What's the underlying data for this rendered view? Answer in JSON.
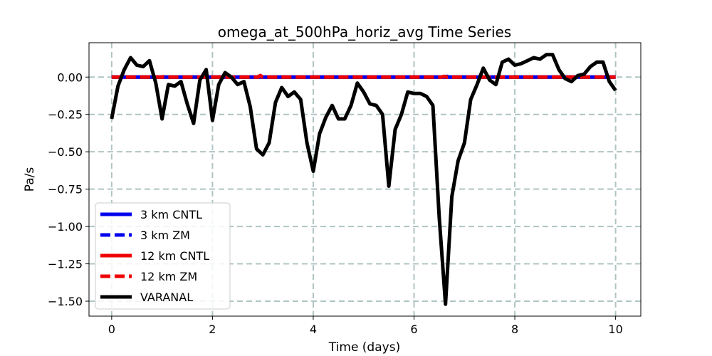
{
  "chart_data": {
    "type": "line",
    "title": "omega_at_500hPa_horiz_avg Time Series",
    "xlabel": "Time (days)",
    "ylabel": "Pa/s",
    "xlim": [
      -0.45,
      10.5
    ],
    "ylim": [
      -1.6,
      0.23
    ],
    "xticks": [
      0,
      2,
      4,
      6,
      8,
      10
    ],
    "xtick_labels": [
      "0",
      "2",
      "4",
      "6",
      "8",
      "10"
    ],
    "yticks": [
      0.0,
      -0.25,
      -0.5,
      -0.75,
      -1.0,
      -1.25,
      -1.5
    ],
    "ytick_labels": [
      "0.00",
      "−0.25",
      "−0.50",
      "−0.75",
      "−1.00",
      "−1.25",
      "−1.50"
    ],
    "grid": true,
    "legend_position": "lower-left",
    "series": [
      {
        "name": "3 km CNTL",
        "color": "#0000ee",
        "style": "solid",
        "x": [
          0,
          2,
          4,
          6,
          8,
          10
        ],
        "y": [
          0,
          0,
          0,
          0,
          0,
          0
        ]
      },
      {
        "name": "3 km ZM",
        "color": "#0000ee",
        "style": "dashed",
        "x": [
          0,
          2,
          2.9,
          2.95,
          3.0,
          4,
          6,
          6.6,
          6.65,
          6.7,
          8,
          10
        ],
        "y": [
          0,
          0,
          0.0,
          0.01,
          0.0,
          0,
          0,
          0.0,
          0.005,
          0.0,
          0,
          0
        ]
      },
      {
        "name": "12 km CNTL",
        "color": "#ee0000",
        "style": "solid",
        "x": [
          0,
          2,
          4,
          6,
          8,
          10
        ],
        "y": [
          0,
          0,
          0,
          0,
          0,
          0
        ]
      },
      {
        "name": "12 km ZM",
        "color": "#ee0000",
        "style": "dashed",
        "x": [
          0,
          1.0,
          1.05,
          1.1,
          2,
          2.9,
          2.95,
          3.0,
          4,
          6,
          6.55,
          6.6,
          6.65,
          8,
          10
        ],
        "y": [
          0,
          0,
          0.005,
          0,
          0,
          0,
          0.01,
          0,
          0,
          0,
          0,
          0.005,
          0,
          0,
          0
        ]
      },
      {
        "name": "VARANAL",
        "color": "#000000",
        "style": "solid",
        "x": [
          0,
          0.125,
          0.25,
          0.375,
          0.5,
          0.625,
          0.75,
          0.875,
          1,
          1.125,
          1.25,
          1.375,
          1.5,
          1.625,
          1.75,
          1.875,
          2,
          2.125,
          2.25,
          2.375,
          2.5,
          2.625,
          2.75,
          2.875,
          3,
          3.125,
          3.25,
          3.375,
          3.5,
          3.625,
          3.75,
          3.875,
          4,
          4.125,
          4.25,
          4.375,
          4.5,
          4.625,
          4.75,
          4.875,
          5,
          5.125,
          5.25,
          5.375,
          5.5,
          5.625,
          5.75,
          5.875,
          6,
          6.125,
          6.25,
          6.375,
          6.5,
          6.625,
          6.75,
          6.875,
          7,
          7.125,
          7.25,
          7.375,
          7.5,
          7.625,
          7.75,
          7.875,
          8,
          8.125,
          8.25,
          8.375,
          8.5,
          8.625,
          8.75,
          8.875,
          9,
          9.125,
          9.25,
          9.375,
          9.5,
          9.625,
          9.75,
          9.875,
          10
        ],
        "y": [
          -0.28,
          -0.06,
          0.05,
          0.13,
          0.08,
          0.07,
          0.11,
          -0.04,
          -0.28,
          -0.05,
          -0.06,
          -0.03,
          -0.18,
          -0.31,
          -0.02,
          0.05,
          -0.29,
          -0.05,
          0.03,
          0.0,
          -0.05,
          -0.03,
          -0.2,
          -0.48,
          -0.52,
          -0.44,
          -0.17,
          -0.07,
          -0.13,
          -0.1,
          -0.15,
          -0.44,
          -0.63,
          -0.38,
          -0.27,
          -0.19,
          -0.28,
          -0.28,
          -0.19,
          -0.04,
          -0.1,
          -0.18,
          -0.19,
          -0.25,
          -0.73,
          -0.35,
          -0.25,
          -0.1,
          -0.11,
          -0.11,
          -0.13,
          -0.19,
          -0.94,
          -1.52,
          -0.8,
          -0.56,
          -0.44,
          -0.15,
          -0.05,
          0.06,
          -0.02,
          -0.05,
          0.1,
          0.12,
          0.08,
          0.09,
          0.11,
          0.13,
          0.12,
          0.15,
          0.15,
          0.05,
          -0.01,
          -0.03,
          0.01,
          0.02,
          0.07,
          0.1,
          0.1,
          -0.03,
          -0.09
        ]
      }
    ]
  }
}
